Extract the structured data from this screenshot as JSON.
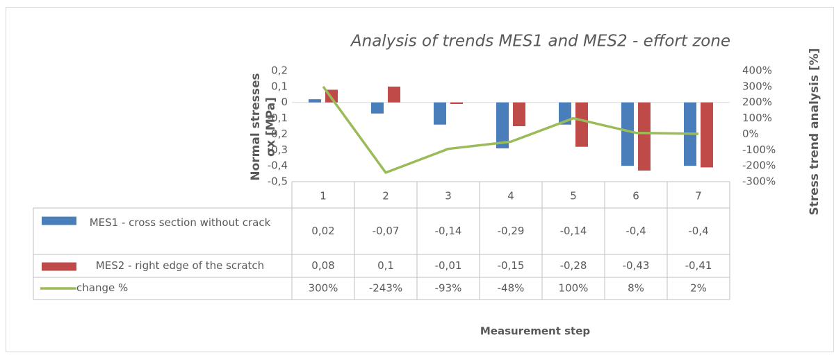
{
  "chart_data": {
    "type": "bar",
    "title": "Analysis of trends MES1 and MES2 - effort zone",
    "ylabel": [
      "Normal stresses",
      "σx [MPa]"
    ],
    "y2label": "Stress trend analysis [%]",
    "xlabel": "Measurement step",
    "categories": [
      "1",
      "2",
      "3",
      "4",
      "5",
      "6",
      "7"
    ],
    "series": [
      {
        "name": "MES1 - cross section without crack",
        "type": "bar",
        "color": "#4a7ebb",
        "values": [
          0.02,
          -0.07,
          -0.14,
          -0.29,
          -0.14,
          -0.4,
          -0.4
        ],
        "value_labels": [
          "0,02",
          "-0,07",
          "-0,14",
          "-0,29",
          "-0,14",
          "-0,4",
          "-0,4"
        ]
      },
      {
        "name": "MES2 - right edge of the scratch",
        "type": "bar",
        "color": "#be4b48",
        "values": [
          0.08,
          0.1,
          -0.01,
          -0.15,
          -0.28,
          -0.43,
          -0.41
        ],
        "value_labels": [
          "0,08",
          "0,1",
          "-0,01",
          "-0,15",
          "-0,28",
          "-0,43",
          "-0,41"
        ]
      },
      {
        "name": "change %",
        "type": "line",
        "axis": "y2",
        "color": "#9bbb59",
        "values": [
          300,
          -243,
          -93,
          -48,
          100,
          8,
          2
        ],
        "value_labels": [
          "300%",
          "-243%",
          "-93%",
          "-48%",
          "100%",
          "8%",
          "2%"
        ]
      }
    ],
    "ylim": [
      -0.5,
      0.2
    ],
    "yticks": [
      {
        "value": 0.2,
        "label": "0,2"
      },
      {
        "value": 0.1,
        "label": "0,1"
      },
      0,
      {
        "value": -0.1,
        "label": "-0,1"
      },
      {
        "value": -0.2,
        "label": "-0,2"
      },
      {
        "value": -0.3,
        "label": "-0,3"
      },
      {
        "value": -0.4,
        "label": "-0,4"
      },
      {
        "value": -0.5,
        "label": "-0,5"
      }
    ],
    "y2lim": [
      -300,
      400
    ],
    "y2ticks": [
      {
        "value": 400,
        "label": "400%"
      },
      {
        "value": 300,
        "label": "300%"
      },
      {
        "value": 200,
        "label": "200%"
      },
      {
        "value": 100,
        "label": "100%"
      },
      {
        "value": 0,
        "label": "0%"
      },
      {
        "value": -100,
        "label": "-100%"
      },
      {
        "value": -200,
        "label": "-200%"
      },
      {
        "value": -300,
        "label": "-300%"
      }
    ],
    "data_table": true
  }
}
